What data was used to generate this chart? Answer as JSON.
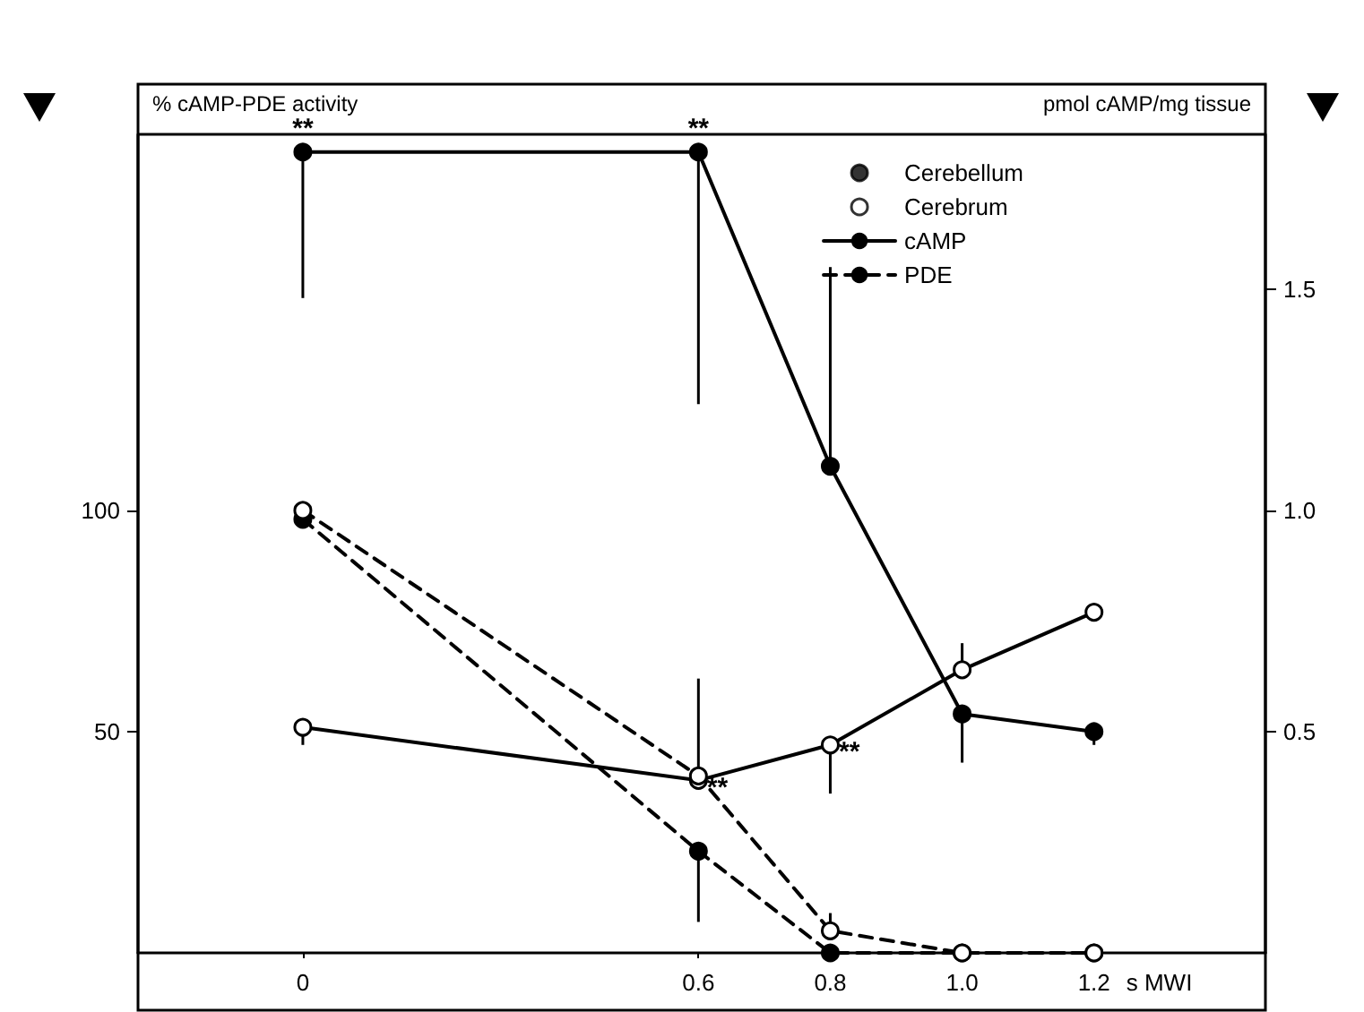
{
  "chart_data": {
    "type": "line",
    "ylabel": "% cAMP-PDE activity",
    "y2label": "pmol cAMP/mg tissue",
    "xlabel": "s MWI",
    "x": [
      0,
      0.6,
      0.8,
      1.0,
      1.2
    ],
    "xlim": [
      -0.25,
      1.46
    ],
    "xticks": [
      0,
      0.6,
      0.8,
      {
        "value": 1.0,
        "label": "1.0"
      },
      1.2
    ],
    "ylim": [
      0,
      185
    ],
    "yticks": [
      50,
      100
    ],
    "y2lim": [
      0,
      1.85
    ],
    "y2ticks": [
      0.5,
      {
        "value": 1.0,
        "label": "1.0"
      },
      1.5
    ],
    "series": [
      {
        "axis": "y2",
        "color": "#000000",
        "marker": "circle",
        "line_style": "solid",
        "values": [
          1.81,
          1.81,
          1.1,
          0.54,
          0.5
        ],
        "errors": [
          [
            1.48,
            1.81
          ],
          [
            1.24,
            1.81
          ],
          [
            1.1,
            1.55
          ],
          [
            0.43,
            0.54
          ],
          [
            0.47,
            0.5
          ]
        ],
        "value_labels": [
          "**",
          "**",
          null,
          null,
          null
        ]
      },
      {
        "axis": "y2",
        "color": "#000000",
        "colors": [
          "#ffffff",
          "#ffffff",
          "#ffffff",
          "#ffffff",
          "#ffffff"
        ],
        "marker": "circle",
        "line_style": "solid",
        "values": [
          0.51,
          0.39,
          0.47,
          0.64,
          0.77
        ],
        "errors": [
          [
            0.47,
            0.51
          ],
          [
            0.39,
            0.62
          ],
          [
            0.36,
            0.47
          ],
          [
            0.64,
            0.7
          ],
          [
            0.75,
            0.77
          ]
        ],
        "value_labels": [
          null,
          "**",
          "**",
          null,
          null
        ]
      },
      {
        "color": "#000000",
        "marker": "circle",
        "line_style": "dashed",
        "values": [
          98,
          23,
          0,
          0,
          0
        ],
        "errors": [
          null,
          [
            7,
            23
          ],
          null,
          null,
          null
        ]
      },
      {
        "color": "#000000",
        "colors": [
          "#ffffff",
          "#ffffff",
          "#ffffff",
          "#ffffff",
          "#ffffff"
        ],
        "marker": "circle",
        "line_style": "dashed",
        "values": [
          100,
          40,
          5,
          0,
          0
        ],
        "errors": [
          null,
          null,
          [
            5,
            9
          ],
          null,
          null
        ]
      },
      {
        "type": "scatter",
        "name": "Cerebellum",
        "color": "#000000",
        "marker": "circle",
        "values": [
          null,
          null,
          null,
          null,
          null
        ]
      },
      {
        "type": "scatter",
        "name": "Cerebrum",
        "color": "#000000",
        "colors": [
          "#ffffff",
          "#ffffff",
          "#ffffff",
          "#ffffff",
          "#ffffff"
        ],
        "marker": "circle",
        "values": [
          null,
          null,
          null,
          null,
          null
        ]
      },
      {
        "name": "cAMP",
        "color": "#000000",
        "marker": "none",
        "line_style": "solid",
        "values": [
          null,
          null,
          null,
          null,
          null
        ]
      },
      {
        "name": "PDE",
        "color": "#000000",
        "marker": "none",
        "line_style": "dashed",
        "values": [
          null,
          null,
          null,
          null,
          null
        ]
      }
    ],
    "legend": "top right"
  }
}
